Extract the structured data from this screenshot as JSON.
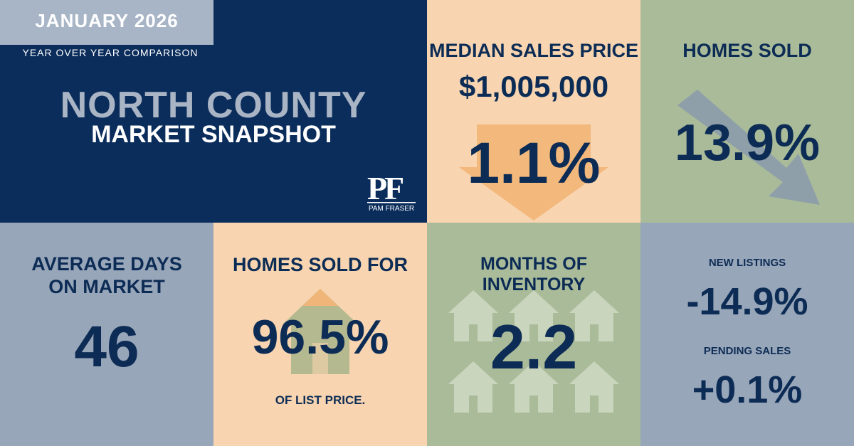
{
  "header": {
    "month": "JANUARY 2026",
    "comparison": "YEAR OVER YEAR COMPARISON",
    "region": "NORTH COUNTY",
    "subtitle": "MARKET SNAPSHOT",
    "logo_text": "PAM FRASER"
  },
  "median_sales_price": {
    "label": "MEDIAN SALES PRICE",
    "price": "$1,005,000",
    "change": "1.1%",
    "direction": "down",
    "arrow_color": "#f3b87b"
  },
  "homes_sold": {
    "label": "HOMES SOLD",
    "change": "13.9%",
    "direction": "down",
    "arrow_color": "#8a9aab"
  },
  "days_on_market": {
    "label_line1": "AVERAGE DAYS",
    "label_line2": "ON MARKET",
    "value": "46"
  },
  "sold_for": {
    "label": "HOMES SOLD FOR",
    "value": "96.5%",
    "sublabel": "OF LIST PRICE."
  },
  "inventory": {
    "label": "MONTHS OF INVENTORY",
    "value": "2.2"
  },
  "listings": {
    "new_label": "NEW LISTINGS",
    "new_value": "-14.9%",
    "pending_label": "PENDING SALES",
    "pending_value": "+0.1%"
  },
  "colors": {
    "navy": "#0b2d5b",
    "peach": "#f8d5b0",
    "sage": "#a9bb99",
    "slate": "#98a6b9",
    "text_dark": "#0d2c55"
  }
}
